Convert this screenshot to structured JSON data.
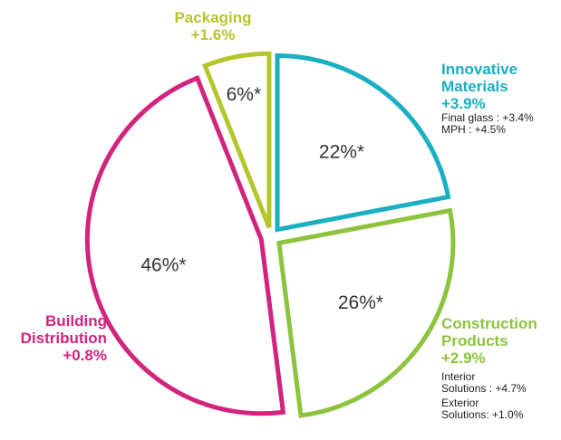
{
  "colors": {
    "packaging": "#b5c52c",
    "innovative_materials": "#1aafc1",
    "construction_products": "#8dc33e",
    "building_distribution": "#d2237f"
  },
  "chart_data": {
    "type": "pie",
    "exploded": true,
    "slices": [
      {
        "key": "packaging",
        "label": [
          "Packaging"
        ],
        "growth": "+1.6%",
        "value": 6,
        "value_label": "6%*",
        "details": []
      },
      {
        "key": "innovative_materials",
        "label": [
          "Innovative",
          "Materials"
        ],
        "growth": "+3.9%",
        "value": 22,
        "value_label": "22%*",
        "details": [
          "Final glass : +3.4%",
          "MPH : +4.5%"
        ]
      },
      {
        "key": "construction_products",
        "label": [
          "Construction",
          "Products"
        ],
        "growth": "+2.9%",
        "value": 26,
        "value_label": "26%*",
        "details": [
          "Interior",
          "Solutions : +4.7%",
          "Exterior",
          "Solutions: +1.0%"
        ]
      },
      {
        "key": "building_distribution",
        "label": [
          "Building",
          "Distribution"
        ],
        "growth": "+0.8%",
        "value": 46,
        "value_label": "46%*",
        "details": []
      }
    ]
  }
}
